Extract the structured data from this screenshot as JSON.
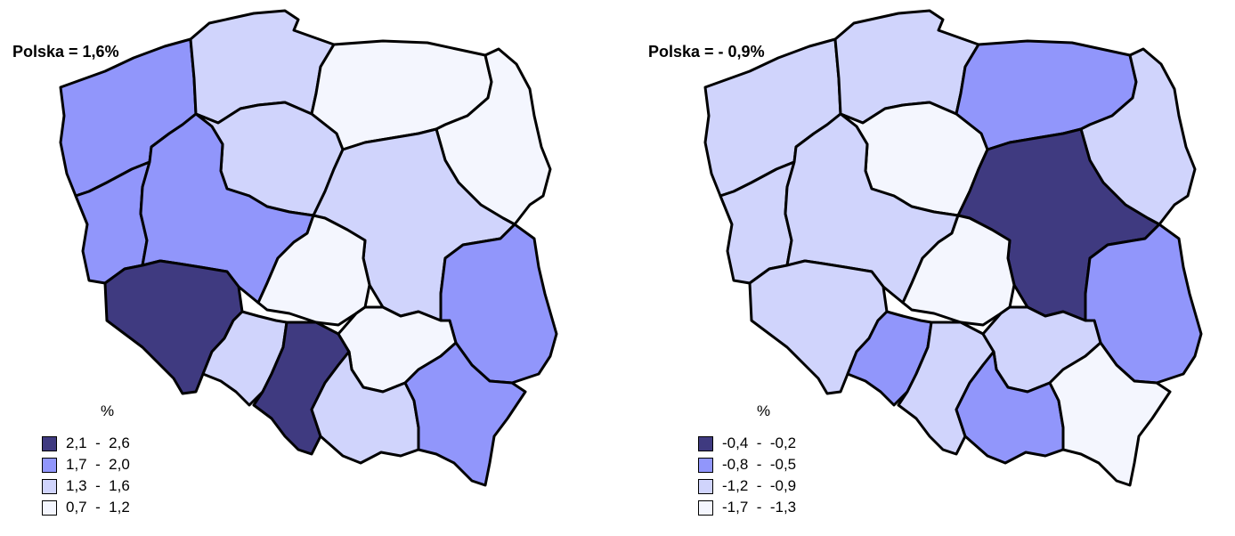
{
  "colors": {
    "class1": "#3f3a80",
    "class2": "#9196fb",
    "class3": "#d0d4fc",
    "class4": "#f4f6fe",
    "border": "#000000"
  },
  "maps": {
    "left": {
      "country_label": "Polska = 1,6%",
      "legend": {
        "unit": "%",
        "items": [
          {
            "label": "2,1  -  2,6",
            "color": "#3f3a80"
          },
          {
            "label": "1,7  -  2,0",
            "color": "#9196fb"
          },
          {
            "label": "1,3  -  1,6",
            "color": "#d0d4fc"
          },
          {
            "label": "0,7  -  1,2",
            "color": "#f4f6fe"
          }
        ]
      },
      "regions": {
        "zachodniopomorskie": "#9196fb",
        "pomorskie": "#d0d4fc",
        "warminsko-mazurskie": "#f4f6fe",
        "podlaskie": "#f4f6fe",
        "kujawsko-pomorskie": "#d0d4fc",
        "lubuskie": "#9196fb",
        "wielkopolskie": "#9196fb",
        "mazowieckie": "#d0d4fc",
        "lodzkie": "#f4f6fe",
        "lubelskie": "#9196fb",
        "dolnoslaskie": "#3f3a80",
        "opolskie": "#d0d4fc",
        "slaskie": "#3f3a80",
        "swietokrzyskie": "#f4f6fe",
        "malopolskie": "#d0d4fc",
        "podkarpackie": "#9196fb"
      }
    },
    "right": {
      "country_label": "Polska = - 0,9%",
      "legend": {
        "unit": "%",
        "items": [
          {
            "label": "-0,4  -  -0,2",
            "color": "#3f3a80"
          },
          {
            "label": "-0,8  -  -0,5",
            "color": "#9196fb"
          },
          {
            "label": "-1,2  -  -0,9",
            "color": "#d0d4fc"
          },
          {
            "label": "-1,7  -  -1,3",
            "color": "#f4f6fe"
          }
        ]
      },
      "regions": {
        "zachodniopomorskie": "#d0d4fc",
        "pomorskie": "#d0d4fc",
        "warminsko-mazurskie": "#9196fb",
        "podlaskie": "#d0d4fc",
        "kujawsko-pomorskie": "#f4f6fe",
        "lubuskie": "#d0d4fc",
        "wielkopolskie": "#d0d4fc",
        "mazowieckie": "#3f3a80",
        "lodzkie": "#f4f6fe",
        "lubelskie": "#9196fb",
        "dolnoslaskie": "#d0d4fc",
        "opolskie": "#9196fb",
        "slaskie": "#d0d4fc",
        "swietokrzyskie": "#d0d4fc",
        "malopolskie": "#9196fb",
        "podkarpackie": "#f4f6fe"
      }
    }
  }
}
